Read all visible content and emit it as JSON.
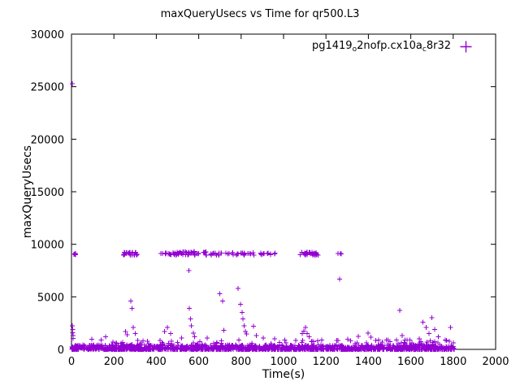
{
  "chart_data": {
    "type": "scatter",
    "title": "maxQueryUsecs vs Time for qr500.L3",
    "xlabel": "Time(s)",
    "ylabel": "maxQueryUsecs",
    "xlim": [
      0,
      2000
    ],
    "ylim": [
      0,
      30000
    ],
    "xticks": [
      0,
      200,
      400,
      600,
      800,
      1000,
      1200,
      1400,
      1600,
      1800,
      2000
    ],
    "yticks": [
      0,
      5000,
      10000,
      15000,
      20000,
      25000,
      30000
    ],
    "grid": false,
    "legend": {
      "position": "top-right",
      "marker": "+",
      "parts": [
        {
          "t": "pg1419"
        },
        {
          "t": "o",
          "sub": true
        },
        {
          "t": "2nofp.cx10a"
        },
        {
          "t": "c",
          "sub": true
        },
        {
          "t": "8r32"
        }
      ]
    },
    "series": [
      {
        "name": "pg1419_o2nofp.cx10a_c8r32",
        "color": "#9400d3",
        "marker": "+",
        "baseline_band": {
          "x_min": 0,
          "x_max": 1806,
          "count": 1500,
          "y_pow": 2.6,
          "y_scale": 430,
          "seed": 11
        },
        "spray": {
          "x_min": 0,
          "x_max": 1806,
          "count": 110,
          "y_min": 250,
          "y_max": 900
        },
        "spike_clusters": [
          {
            "x_min": 2,
            "x_max": 22,
            "y_min": 8950,
            "y_max": 9200,
            "count": 5
          },
          {
            "x_min": 246,
            "x_max": 312,
            "y_min": 8950,
            "y_max": 9250,
            "count": 26
          },
          {
            "x_min": 418,
            "x_max": 476,
            "y_min": 8950,
            "y_max": 9200,
            "count": 10
          },
          {
            "x_min": 478,
            "x_max": 640,
            "y_min": 8950,
            "y_max": 9300,
            "count": 48
          },
          {
            "x_min": 648,
            "x_max": 862,
            "y_min": 8950,
            "y_max": 9200,
            "count": 34
          },
          {
            "x_min": 888,
            "x_max": 962,
            "y_min": 8980,
            "y_max": 9180,
            "count": 12
          },
          {
            "x_min": 1078,
            "x_max": 1164,
            "y_min": 8950,
            "y_max": 9250,
            "count": 28
          },
          {
            "x_min": 1253,
            "x_max": 1274,
            "y_min": 9050,
            "y_max": 9150,
            "count": 3
          }
        ],
        "extra_points": [
          [
            3,
            25300
          ],
          [
            4,
            2250
          ],
          [
            5,
            1900
          ],
          [
            6,
            1600
          ],
          [
            7,
            1300
          ],
          [
            8,
            1050
          ],
          [
            95,
            950
          ],
          [
            160,
            1200
          ],
          [
            255,
            1700
          ],
          [
            262,
            1400
          ],
          [
            280,
            4600
          ],
          [
            286,
            3900
          ],
          [
            292,
            2100
          ],
          [
            300,
            1500
          ],
          [
            438,
            1700
          ],
          [
            452,
            2100
          ],
          [
            468,
            1500
          ],
          [
            520,
            1100
          ],
          [
            553,
            7500
          ],
          [
            556,
            3900
          ],
          [
            561,
            2900
          ],
          [
            566,
            2250
          ],
          [
            574,
            1550
          ],
          [
            580,
            1200
          ],
          [
            640,
            1100
          ],
          [
            700,
            5300
          ],
          [
            712,
            4600
          ],
          [
            718,
            1800
          ],
          [
            786,
            5800
          ],
          [
            797,
            4300
          ],
          [
            804,
            3500
          ],
          [
            809,
            2900
          ],
          [
            814,
            2250
          ],
          [
            819,
            1700
          ],
          [
            825,
            1450
          ],
          [
            858,
            2200
          ],
          [
            872,
            1300
          ],
          [
            905,
            1100
          ],
          [
            958,
            1000
          ],
          [
            1005,
            900
          ],
          [
            1088,
            1500
          ],
          [
            1096,
            1750
          ],
          [
            1104,
            2100
          ],
          [
            1112,
            1500
          ],
          [
            1120,
            1200
          ],
          [
            1180,
            900
          ],
          [
            1265,
            6700
          ],
          [
            1302,
            950
          ],
          [
            1317,
            800
          ],
          [
            1352,
            1250
          ],
          [
            1398,
            1550
          ],
          [
            1412,
            1150
          ],
          [
            1448,
            900
          ],
          [
            1502,
            750
          ],
          [
            1548,
            3700
          ],
          [
            1560,
            1300
          ],
          [
            1572,
            900
          ],
          [
            1640,
            1000
          ],
          [
            1658,
            2600
          ],
          [
            1672,
            2100
          ],
          [
            1685,
            1500
          ],
          [
            1699,
            3000
          ],
          [
            1712,
            1900
          ],
          [
            1730,
            1200
          ],
          [
            1762,
            900
          ],
          [
            1788,
            2100
          ],
          [
            1800,
            600
          ]
        ]
      }
    ]
  }
}
